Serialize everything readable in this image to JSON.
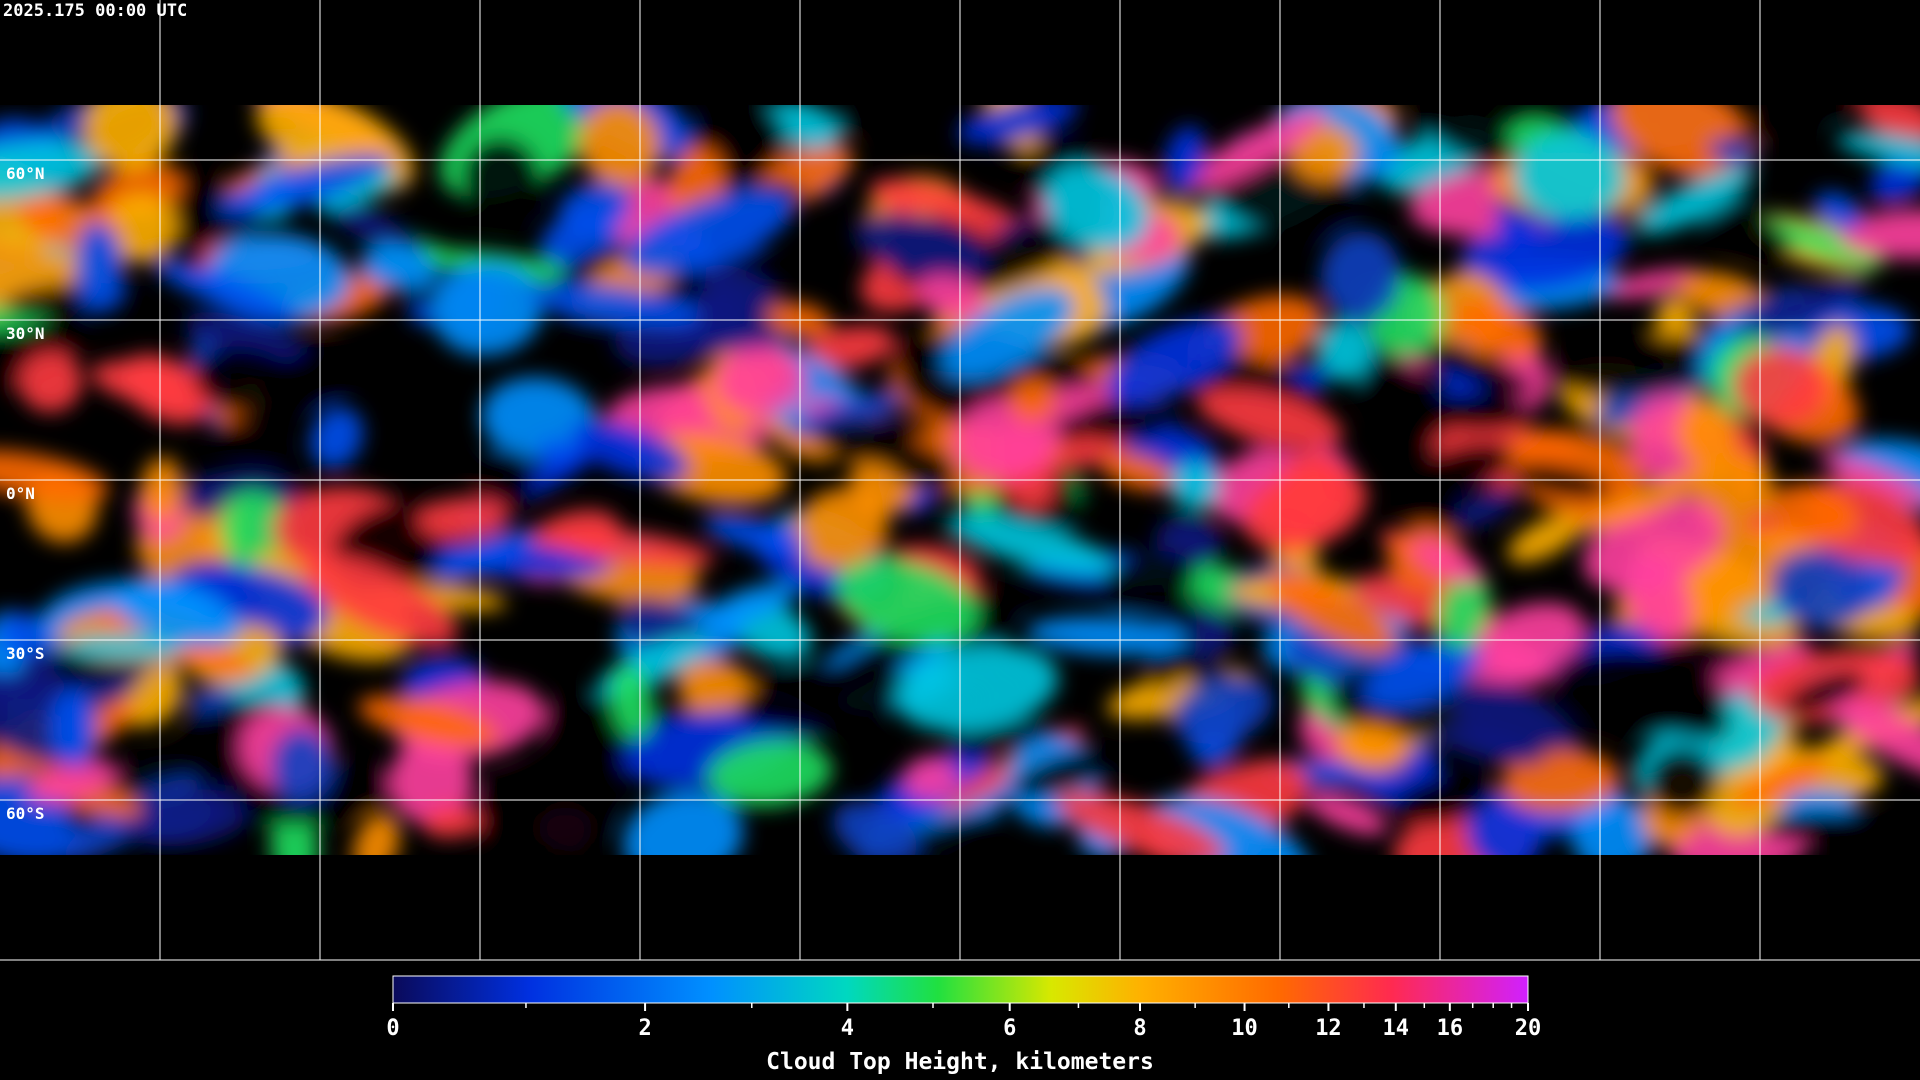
{
  "header": {
    "timestamp": "2025.175 00:00 UTC"
  },
  "map": {
    "lat_labels": [
      "60°N",
      "30°N",
      "0°N",
      "30°S",
      "60°S"
    ]
  },
  "colorbar": {
    "label": "Cloud Top Height, kilometers",
    "lim": [
      0,
      20
    ],
    "ticks": [
      0,
      2,
      4,
      6,
      8,
      10,
      12,
      14,
      16,
      20
    ],
    "minor_ticks": [
      1,
      3,
      5,
      7,
      9,
      11,
      13,
      15,
      17,
      18,
      19
    ]
  }
}
